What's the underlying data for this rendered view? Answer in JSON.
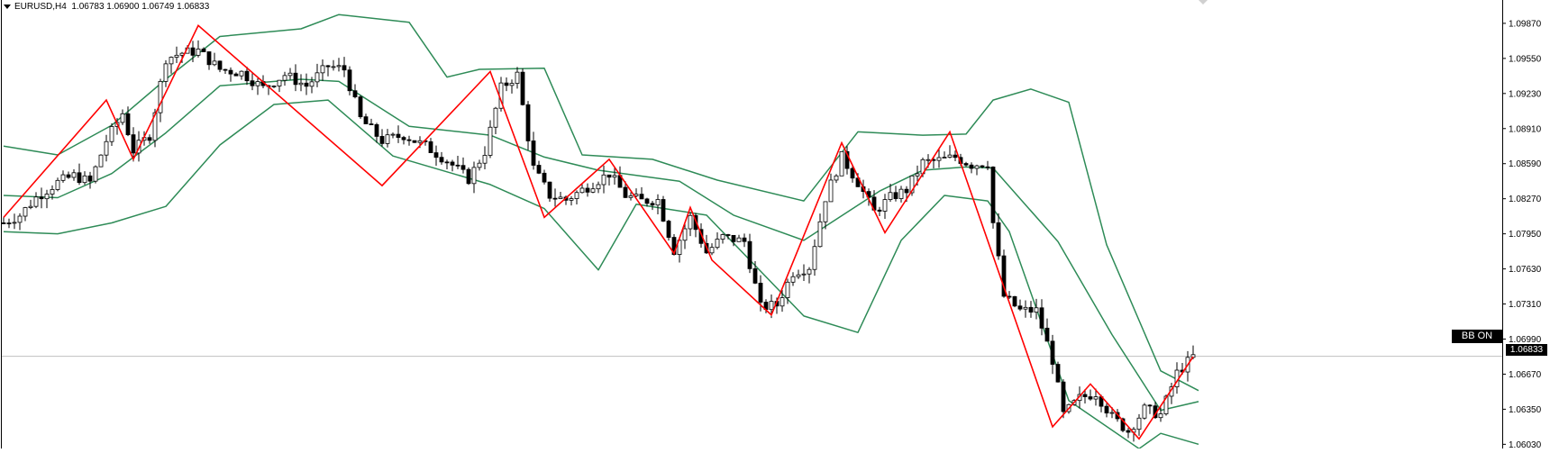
{
  "header": {
    "symbol": "EURUSD,H4",
    "ohlc": "1.06783 1.06900 1.06749 1.06833"
  },
  "badges": {
    "indicator_label": "BB ON",
    "current_price": "1.06833"
  },
  "colors": {
    "band": "#2e8b57",
    "zigzag": "#ff0000",
    "candle": "#000000",
    "price_line": "#c0c0c0"
  },
  "chart_data": {
    "type": "candlestick",
    "title": "",
    "xlabel": "",
    "ylabel": "",
    "ylim": [
      1.06,
      1.1005
    ],
    "y_ticks": [
      "1.09870",
      "1.09550",
      "1.09230",
      "1.08910",
      "1.08590",
      "1.08270",
      "1.07950",
      "1.07630",
      "1.07310",
      "1.06990",
      "1.06670",
      "1.06350",
      "1.06030"
    ],
    "current_price": 1.06833,
    "bars": 190,
    "zigzag": [
      [
        0,
        1.081
      ],
      [
        19,
        1.0917
      ],
      [
        24,
        1.0863
      ],
      [
        36,
        1.0985
      ],
      [
        70,
        1.0839
      ],
      [
        90,
        1.0943
      ],
      [
        100,
        1.081
      ],
      [
        112,
        1.0863
      ],
      [
        124,
        1.0777
      ],
      [
        127,
        1.0819
      ],
      [
        131,
        1.0771
      ],
      [
        142,
        1.0721
      ],
      [
        155,
        1.0878
      ],
      [
        163,
        1.0796
      ],
      [
        175,
        1.0888
      ],
      [
        194,
        1.0619
      ],
      [
        201,
        1.0658
      ],
      [
        210,
        1.0608
      ],
      [
        220,
        1.0683
      ]
    ],
    "bands": {
      "upper": [
        [
          0,
          1.0875
        ],
        [
          10,
          1.0867
        ],
        [
          20,
          1.0894
        ],
        [
          30,
          1.0936
        ],
        [
          40,
          1.0975
        ],
        [
          55,
          1.0982
        ],
        [
          62,
          1.0995
        ],
        [
          75,
          1.0988
        ],
        [
          82,
          1.0938
        ],
        [
          88,
          1.0945
        ],
        [
          100,
          1.0946
        ],
        [
          107,
          1.0867
        ],
        [
          120,
          1.0863
        ],
        [
          132,
          1.0844
        ],
        [
          148,
          1.0825
        ],
        [
          158,
          1.0888
        ],
        [
          170,
          1.0885
        ],
        [
          178,
          1.0886
        ],
        [
          183,
          1.0917
        ],
        [
          190,
          1.0927
        ],
        [
          197,
          1.0915
        ],
        [
          204,
          1.0785
        ],
        [
          214,
          1.067
        ],
        [
          221,
          1.0652
        ]
      ],
      "middle": [
        [
          0,
          1.083
        ],
        [
          10,
          1.0828
        ],
        [
          20,
          1.085
        ],
        [
          30,
          1.0887
        ],
        [
          40,
          1.093
        ],
        [
          55,
          1.0936
        ],
        [
          62,
          1.0934
        ],
        [
          75,
          1.0893
        ],
        [
          90,
          1.0885
        ],
        [
          100,
          1.0865
        ],
        [
          110,
          1.0853
        ],
        [
          125,
          1.0843
        ],
        [
          135,
          1.0812
        ],
        [
          148,
          1.0789
        ],
        [
          162,
          1.0834
        ],
        [
          170,
          1.0853
        ],
        [
          178,
          1.0856
        ],
        [
          183,
          1.0855
        ],
        [
          195,
          1.0788
        ],
        [
          205,
          1.0703
        ],
        [
          214,
          1.0634
        ],
        [
          221,
          1.0642
        ]
      ],
      "lower": [
        [
          0,
          1.0797
        ],
        [
          10,
          1.0795
        ],
        [
          20,
          1.0805
        ],
        [
          30,
          1.082
        ],
        [
          40,
          1.0876
        ],
        [
          50,
          1.0913
        ],
        [
          60,
          1.0917
        ],
        [
          72,
          1.0866
        ],
        [
          90,
          1.084
        ],
        [
          100,
          1.0818
        ],
        [
          110,
          1.0762
        ],
        [
          117,
          1.0822
        ],
        [
          130,
          1.0812
        ],
        [
          148,
          1.072
        ],
        [
          158,
          1.0705
        ],
        [
          166,
          1.0789
        ],
        [
          174,
          1.083
        ],
        [
          182,
          1.0825
        ],
        [
          186,
          1.0797
        ],
        [
          197,
          1.0643
        ],
        [
          210,
          1.0599
        ],
        [
          214,
          1.0613
        ],
        [
          221,
          1.0603
        ]
      ]
    },
    "price_series": [
      [
        0,
        1.0805
      ],
      [
        3,
        1.0812
      ],
      [
        6,
        1.0828
      ],
      [
        10,
        1.0842
      ],
      [
        13,
        1.0848
      ],
      [
        16,
        1.0842
      ],
      [
        19,
        1.088
      ],
      [
        22,
        1.0905
      ],
      [
        24,
        1.0871
      ],
      [
        27,
        1.0885
      ],
      [
        30,
        1.0955
      ],
      [
        33,
        1.096
      ],
      [
        36,
        1.0962
      ],
      [
        40,
        1.0945
      ],
      [
        44,
        1.0942
      ],
      [
        48,
        1.0928
      ],
      [
        52,
        1.094
      ],
      [
        56,
        1.093
      ],
      [
        60,
        1.0948
      ],
      [
        63,
        1.0945
      ],
      [
        66,
        1.09
      ],
      [
        70,
        1.088
      ],
      [
        74,
        1.0885
      ],
      [
        78,
        1.0875
      ],
      [
        82,
        1.0862
      ],
      [
        86,
        1.0845
      ],
      [
        89,
        1.087
      ],
      [
        92,
        1.0928
      ],
      [
        95,
        1.094
      ],
      [
        98,
        1.0855
      ],
      [
        101,
        1.083
      ],
      [
        104,
        1.0826
      ],
      [
        108,
        1.0838
      ],
      [
        112,
        1.085
      ],
      [
        115,
        1.083
      ],
      [
        118,
        1.0825
      ],
      [
        121,
        1.0826
      ],
      [
        124,
        1.078
      ],
      [
        127,
        1.081
      ],
      [
        130,
        1.0778
      ],
      [
        133,
        1.0792
      ],
      [
        137,
        1.0788
      ],
      [
        140,
        1.0728
      ],
      [
        143,
        1.073
      ],
      [
        146,
        1.076
      ],
      [
        149,
        1.0765
      ],
      [
        152,
        1.0828
      ],
      [
        155,
        1.0865
      ],
      [
        158,
        1.0842
      ],
      [
        161,
        1.0815
      ],
      [
        164,
        1.0828
      ],
      [
        167,
        1.0835
      ],
      [
        170,
        1.086
      ],
      [
        173,
        1.0862
      ],
      [
        176,
        1.0865
      ],
      [
        179,
        1.0858
      ],
      [
        182,
        1.086
      ],
      [
        183,
        1.0805
      ],
      [
        185,
        1.0738
      ],
      [
        188,
        1.0725
      ],
      [
        191,
        1.0725
      ],
      [
        194,
        1.068
      ],
      [
        196,
        1.063
      ],
      [
        199,
        1.0645
      ],
      [
        202,
        1.065
      ],
      [
        205,
        1.0628
      ],
      [
        208,
        1.0615
      ],
      [
        211,
        1.0635
      ],
      [
        214,
        1.063
      ],
      [
        217,
        1.0668
      ],
      [
        220,
        1.0683
      ]
    ]
  }
}
